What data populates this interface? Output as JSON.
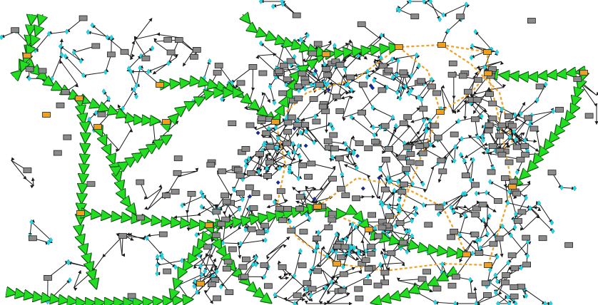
{
  "diagram": {
    "kind": "network-graph",
    "background": "#ffffff",
    "legend": "none",
    "text_labels": "none",
    "colors": {
      "node_gray": "#8a8a8a",
      "node_orange": "#f0a020",
      "node_border": "#222222",
      "edge_black": "#1a1a1a",
      "edge_cyan_marker": "#22d8e8",
      "edge_orange_dashed": "#f0a020",
      "edge_green_arrow": "#22dd22",
      "edge_navy_marker": "#1a2a88"
    },
    "node_types": [
      {
        "name": "gray-rect-node",
        "color": "#8a8a8a"
      },
      {
        "name": "orange-rect-node",
        "color": "#f0a020"
      }
    ],
    "edge_types": [
      {
        "name": "thin-black-arrow-edge",
        "color": "#1a1a1a"
      },
      {
        "name": "cyan-marker-edge",
        "color": "#22d8e8"
      },
      {
        "name": "orange-dashed-edge",
        "color": "#f0a020"
      },
      {
        "name": "green-arrow-chain-edge",
        "color": "#22dd22"
      }
    ]
  }
}
